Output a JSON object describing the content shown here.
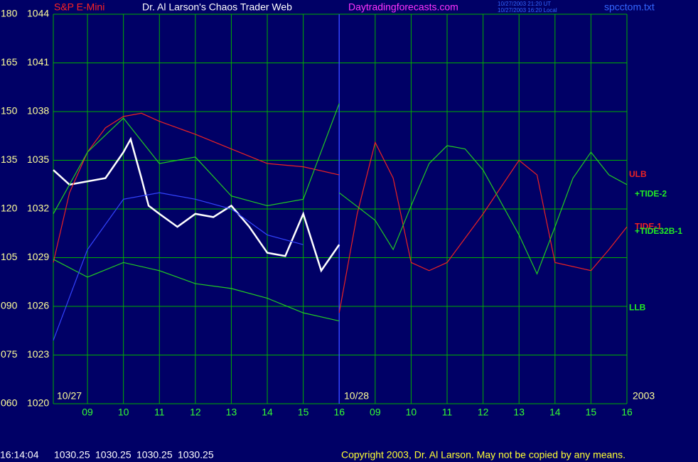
{
  "chart_data": {
    "type": "line",
    "header": {
      "symbol": "S&P E-Mini",
      "title": "Dr. Al Larson's Chaos Trader Web",
      "site": "Daytradingforecasts.com",
      "time_ut": "10/27/2003 21:20 UT",
      "time_local": "10/27/2003 16:20 Local",
      "file": "spcctom.txt"
    },
    "footer": {
      "time": "16:14:04",
      "quotes": [
        1030.25,
        1030.25,
        1030.25,
        1030.25
      ],
      "copyright": "Copyright 2003, Dr. Al Larson. May not be copied by any means."
    },
    "date_labels": [
      "10/27",
      "10/28",
      "2003"
    ],
    "xlim": [
      8.05,
      24
    ],
    "xticks": [
      {
        "value": 9,
        "label": "09"
      },
      10,
      11,
      12,
      13,
      14,
      15,
      16,
      {
        "value": 17,
        "label": "09"
      },
      {
        "value": 18,
        "label": "10"
      },
      {
        "value": 19,
        "label": "11"
      },
      {
        "value": 20,
        "label": "12"
      },
      {
        "value": 21,
        "label": "13"
      },
      {
        "value": 22,
        "label": "14"
      },
      {
        "value": 23,
        "label": "15"
      },
      {
        "value": 24,
        "label": "16"
      }
    ],
    "day_divider": 16,
    "ylim": [
      1020,
      1044
    ],
    "yticks": [
      1020,
      1023,
      1026,
      1029,
      1032,
      1035,
      1038,
      1041,
      1044
    ],
    "y2lim": [
      60,
      180
    ],
    "y2ticks": [
      {
        "value": 60,
        "label": "060"
      },
      {
        "value": 75,
        "label": "075"
      },
      {
        "value": 90,
        "label": "090"
      },
      105,
      120,
      135,
      150,
      165,
      180
    ],
    "grid": true,
    "grid_color": "#00b000",
    "background": "#000066",
    "series": [
      {
        "color": "#ffffff",
        "x": [
          8.05,
          8.5,
          9,
          9.5,
          10,
          10.2,
          10.5,
          10.7,
          11,
          11.5,
          12,
          12.5,
          13,
          13.5,
          14,
          14.5,
          15,
          15.5,
          16
        ],
        "values": [
          1034.4,
          1033.5,
          1033.7,
          1033.9,
          1035.5,
          1036.3,
          1033.9,
          1032.2,
          1031.7,
          1030.9,
          1031.7,
          1031.5,
          1032.2,
          1030.9,
          1029.3,
          1029.1,
          1031.7,
          1028.2,
          1029.8
        ]
      },
      {
        "color": "#ee2222",
        "x": [
          8.05,
          8.5,
          9,
          9.5,
          10,
          10.5,
          11,
          12,
          13,
          14,
          15,
          16
        ],
        "values": [
          1028.7,
          1033.0,
          1035.5,
          1037.0,
          1037.7,
          1037.9,
          1037.4,
          1036.6,
          1035.7,
          1034.8,
          1034.6,
          1034.1
        ]
      },
      {
        "color": "#22cc22",
        "x": [
          8.05,
          9,
          10,
          11,
          12,
          13,
          14,
          15,
          16
        ],
        "values": [
          1031.7,
          1035.5,
          1037.6,
          1034.8,
          1035.2,
          1032.8,
          1032.2,
          1032.6,
          1038.5
        ]
      },
      {
        "color": "#22cc22",
        "x": [
          8.05,
          9,
          10,
          11,
          12,
          13,
          14,
          15,
          16
        ],
        "values": [
          1028.9,
          1027.8,
          1028.7,
          1028.2,
          1027.4,
          1027.1,
          1026.5,
          1025.6,
          1025.1
        ]
      },
      {
        "color": "#3344ff",
        "x": [
          8.05,
          9,
          10,
          11,
          12,
          13,
          14,
          15
        ],
        "values": [
          1023.9,
          1029.5,
          1032.6,
          1033.0,
          1032.6,
          1032.0,
          1030.4,
          1029.8
        ]
      },
      {
        "color": "#ee2222",
        "x": [
          16,
          16.5,
          17,
          17.5,
          18,
          18.5,
          19,
          20,
          21,
          21.5,
          22,
          23,
          23.5,
          24
        ],
        "values": [
          1025.6,
          1031.7,
          1036.1,
          1033.9,
          1028.7,
          1028.2,
          1028.7,
          1031.7,
          1035.0,
          1034.1,
          1028.7,
          1028.2,
          1029.5,
          1030.9
        ]
      },
      {
        "color": "#22cc22",
        "x": [
          16,
          17,
          17.5,
          18,
          18.5,
          19,
          19.5,
          20,
          21,
          21.5,
          22,
          22.5,
          23,
          23.5,
          24
        ],
        "values": [
          1033.0,
          1031.3,
          1029.5,
          1032.2,
          1034.8,
          1035.9,
          1035.7,
          1034.4,
          1030.4,
          1028.0,
          1030.9,
          1033.9,
          1035.5,
          1034.1,
          1033.5
        ]
      }
    ],
    "annotations": [
      {
        "text": "ULB",
        "color": "#ee2222",
        "y": 1034.1
      },
      {
        "text": "+TIDE-2",
        "color": "#22ee22",
        "y": 1032.9
      },
      {
        "text": "TIDE-1",
        "color": "#ee2222",
        "y": 1030.9
      },
      {
        "text": "+TIDE32B-1",
        "color": "#22ee22",
        "y": 1030.6
      },
      {
        "text": "LLB",
        "color": "#22ee22",
        "y": 1025.9
      }
    ]
  }
}
